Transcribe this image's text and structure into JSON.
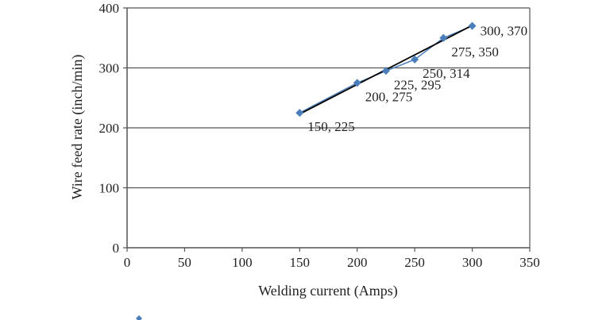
{
  "chart_data": {
    "type": "scatter",
    "title": "",
    "xlabel": "Welding current (Amps)",
    "ylabel": "Wire feed rate (inch/min)",
    "xlim": [
      0,
      350
    ],
    "ylim": [
      0,
      400
    ],
    "xticks": [
      0,
      50,
      100,
      150,
      200,
      250,
      300,
      350
    ],
    "yticks": [
      0,
      100,
      200,
      300,
      400
    ],
    "grid": "horizontal",
    "marker_color": "#4a7ebb",
    "trendline_color": "#000000",
    "series": [
      {
        "x": [
          150,
          200,
          225,
          250,
          275,
          300
        ],
        "y": [
          225,
          275,
          295,
          314,
          350,
          370
        ],
        "labels": [
          "150, 225",
          "200, 275",
          "225, 295",
          "250, 314",
          "275, 350",
          "300, 370"
        ]
      }
    ],
    "trendline": {
      "x": [
        150,
        300
      ],
      "y": [
        223,
        371
      ]
    }
  }
}
